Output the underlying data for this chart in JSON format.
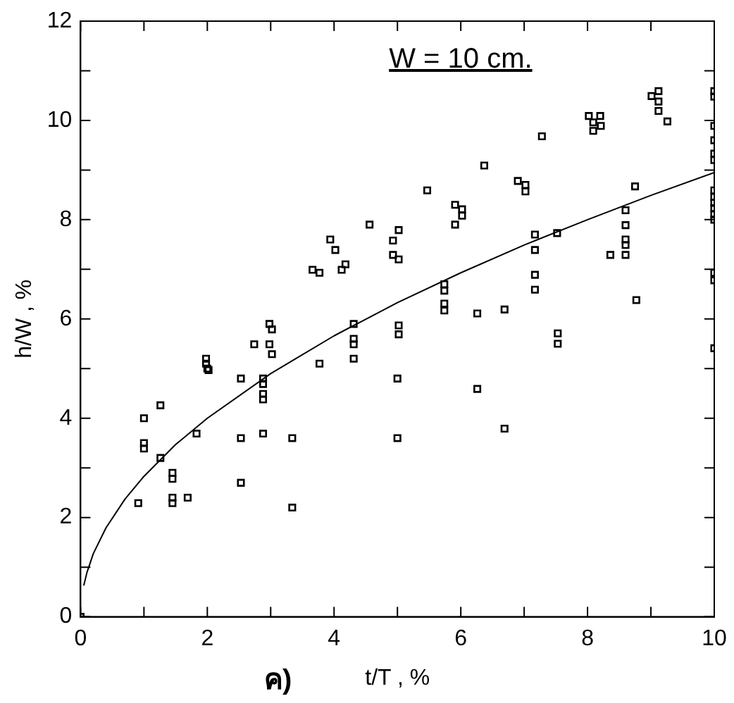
{
  "chart_data": {
    "type": "scatter",
    "xlabel": "t/T , %",
    "ylabel": "h/W , %",
    "annotations": [
      "W = 10 cm.",
      "ค)"
    ],
    "xlim": [
      0,
      10
    ],
    "ylim": [
      0,
      12
    ],
    "xticks": [
      0,
      {
        "value": 1,
        "label": null
      },
      2,
      {
        "value": 3,
        "label": null
      },
      4,
      {
        "value": 5,
        "label": null
      },
      6,
      {
        "value": 7,
        "label": null
      },
      8,
      {
        "value": 9,
        "label": null
      },
      10
    ],
    "yticks": [
      0,
      {
        "value": 1,
        "label": null
      },
      2,
      {
        "value": 3,
        "label": null
      },
      4,
      {
        "value": 5,
        "label": null
      },
      6,
      {
        "value": 7,
        "label": null
      },
      8,
      {
        "value": 9,
        "label": null
      },
      10,
      {
        "value": 11,
        "label": null
      },
      12
    ],
    "grid": false,
    "legend": false,
    "series": [
      {
        "color": "#000000",
        "marker": "square",
        "x": [
          0,
          1.0,
          1.0,
          1.0,
          0.91,
          1.26,
          1.26,
          1.45,
          1.45,
          1.45,
          1.45,
          1.69,
          1.83,
          1.98,
          1.98,
          2.0,
          2.02,
          2.53,
          2.53,
          2.53,
          2.74,
          2.98,
          3.02,
          2.88,
          2.88,
          2.88,
          2.88,
          2.88,
          3.34,
          3.34,
          3.77,
          4.31,
          4.31,
          4.31,
          5.0,
          5.0,
          4.56,
          5.02,
          4.93,
          4.93,
          5.02,
          3.94,
          4.02,
          3.66,
          3.77,
          4.12,
          4.18,
          2.98,
          3.02,
          4.31,
          5.02,
          5.02,
          9.12,
          9.01,
          9.12,
          9.12,
          9.26,
          8.02,
          8.2,
          8.09,
          8.21,
          8.09,
          7.28,
          6.37,
          5.47,
          6.9,
          7.02,
          7.02,
          5.91,
          6.02,
          6.02,
          5.91,
          8.75,
          7.17,
          7.52,
          7.17,
          8.6,
          8.6,
          8.6,
          8.6,
          8.6,
          8.36,
          7.17,
          7.17,
          5.74,
          5.74,
          5.74,
          5.74,
          6.26,
          6.69,
          8.77,
          7.53,
          7.53,
          10,
          10,
          10,
          10,
          10,
          10,
          10,
          10,
          10,
          10,
          10,
          10,
          10,
          10,
          10,
          6.26,
          6.69
        ],
        "values": [
          0,
          4.0,
          3.5,
          3.39,
          2.29,
          4.26,
          3.2,
          2.9,
          2.78,
          2.4,
          2.29,
          2.4,
          3.69,
          5.2,
          5.1,
          5.0,
          4.97,
          4.8,
          3.6,
          2.7,
          5.49,
          5.49,
          5.29,
          4.8,
          4.69,
          4.49,
          4.38,
          3.69,
          3.6,
          2.2,
          5.1,
          5.6,
          5.49,
          5.2,
          4.8,
          3.6,
          7.9,
          7.79,
          7.58,
          7.29,
          7.2,
          7.6,
          7.39,
          6.99,
          6.93,
          6.99,
          7.1,
          5.9,
          5.79,
          5.9,
          5.87,
          5.69,
          10.59,
          10.49,
          10.38,
          10.19,
          9.98,
          10.09,
          10.09,
          9.96,
          9.89,
          9.79,
          9.68,
          9.09,
          8.59,
          8.78,
          8.7,
          8.57,
          8.3,
          8.21,
          8.08,
          7.9,
          8.67,
          7.7,
          7.73,
          7.39,
          8.19,
          7.89,
          7.6,
          7.49,
          7.29,
          7.29,
          6.89,
          6.59,
          6.7,
          6.57,
          6.31,
          6.17,
          6.11,
          6.19,
          6.38,
          5.71,
          5.5,
          10.59,
          10.48,
          9.89,
          9.6,
          9.33,
          9.2,
          8.59,
          8.46,
          8.34,
          8.23,
          8.11,
          8.0,
          6.93,
          6.78,
          5.41,
          4.59,
          3.79
        ]
      },
      {
        "type": "line",
        "color": "#000000",
        "marker": "none",
        "line_style": "solid",
        "x": [
          0.05,
          0.1,
          0.2,
          0.4,
          0.7,
          1,
          1.5,
          2,
          3,
          4,
          5,
          6,
          7,
          8,
          9,
          10
        ],
        "values": [
          0.63,
          0.89,
          1.27,
          1.79,
          2.37,
          2.83,
          3.47,
          4.0,
          4.9,
          5.66,
          6.33,
          6.93,
          7.49,
          8.0,
          8.49,
          8.95
        ]
      }
    ]
  }
}
